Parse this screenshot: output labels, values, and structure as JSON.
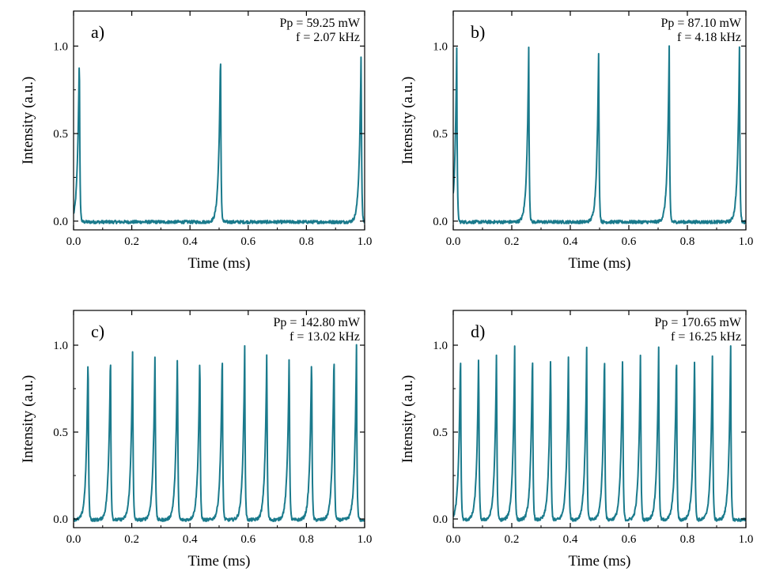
{
  "chart_data": [
    {
      "type": "line",
      "panel_label": "a)",
      "annotation": [
        "Pp = 59.25 mW",
        "f = 2.07 kHz"
      ],
      "xlabel": "Time (ms)",
      "ylabel": "Intensity (a.u.)",
      "xlim": [
        0.0,
        1.0
      ],
      "ylim": [
        -0.05,
        1.2
      ],
      "xticks": [
        "0.0",
        "0.2",
        "0.4",
        "0.6",
        "0.8",
        "1.0"
      ],
      "yticks": [
        "0.0",
        "0.5",
        "1.0"
      ],
      "line_color": "#1a7a8c",
      "pulse_peak": 1.0,
      "pulse_times": [
        0.02,
        0.505,
        0.988
      ]
    },
    {
      "type": "line",
      "panel_label": "b)",
      "annotation": [
        "Pp = 87.10 mW",
        "f = 4.18 kHz"
      ],
      "xlabel": "Time (ms)",
      "ylabel": "Intensity (a.u.)",
      "xlim": [
        0.0,
        1.0
      ],
      "ylim": [
        -0.05,
        1.2
      ],
      "xticks": [
        "0.0",
        "0.2",
        "0.4",
        "0.6",
        "0.8",
        "1.0"
      ],
      "yticks": [
        "0.0",
        "0.5",
        "1.0"
      ],
      "line_color": "#1a7a8c",
      "pulse_peak": 1.0,
      "pulse_times": [
        0.012,
        0.258,
        0.497,
        0.738,
        0.978
      ]
    },
    {
      "type": "line",
      "panel_label": "c)",
      "annotation": [
        "Pp = 142.80 mW",
        "f = 13.02 kHz"
      ],
      "xlabel": "Time (ms)",
      "ylabel": "Intensity (a.u.)",
      "xlim": [
        0.0,
        1.0
      ],
      "ylim": [
        -0.05,
        1.2
      ],
      "xticks": [
        "0.0",
        "0.2",
        "0.4",
        "0.6",
        "0.8",
        "1.0"
      ],
      "yticks": [
        "0.0",
        "0.5",
        "1.0"
      ],
      "line_color": "#1a7a8c",
      "pulse_peak": 1.0,
      "pulse_times": [
        0.05,
        0.127,
        0.203,
        0.28,
        0.357,
        0.434,
        0.511,
        0.588,
        0.664,
        0.741,
        0.818,
        0.895,
        0.972
      ]
    },
    {
      "type": "line",
      "panel_label": "d)",
      "annotation": [
        "Pp = 170.65 mW",
        "f = 16.25 kHz"
      ],
      "xlabel": "Time (ms)",
      "ylabel": "Intensity (a.u.)",
      "xlim": [
        0.0,
        1.0
      ],
      "ylim": [
        -0.05,
        1.2
      ],
      "xticks": [
        "0.0",
        "0.2",
        "0.4",
        "0.6",
        "0.8",
        "1.0"
      ],
      "yticks": [
        "0.0",
        "0.5",
        "1.0"
      ],
      "line_color": "#1a7a8c",
      "pulse_peak": 1.0,
      "pulse_times": [
        0.025,
        0.087,
        0.148,
        0.21,
        0.271,
        0.333,
        0.394,
        0.456,
        0.517,
        0.579,
        0.64,
        0.702,
        0.763,
        0.825,
        0.886,
        0.948
      ]
    }
  ]
}
